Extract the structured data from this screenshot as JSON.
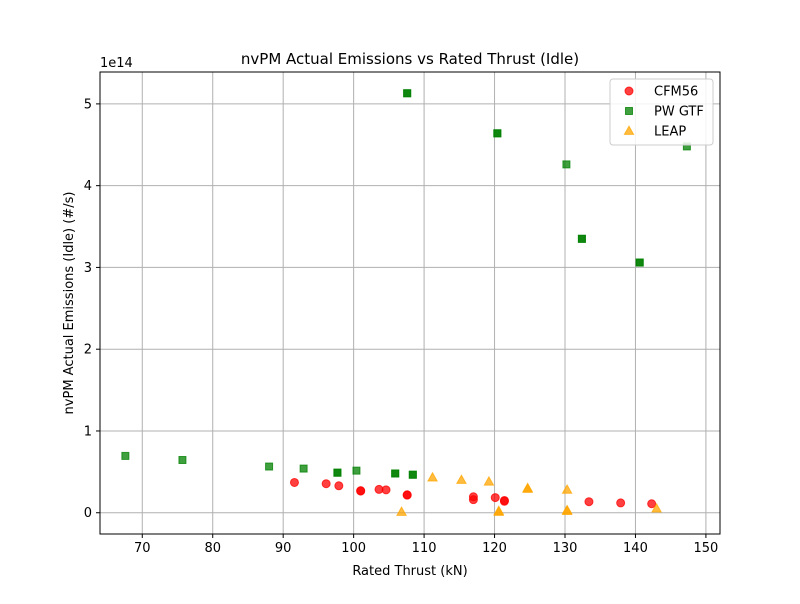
{
  "chart_data": {
    "type": "scatter",
    "title": "nvPM Actual Emissions vs Rated Thrust (Idle)",
    "xlabel": "Rated Thrust (kN)",
    "ylabel": "nvPM Actual Emissions (Idle) (#/s)",
    "y_offset_text": "1e14",
    "xlim": [
      64,
      152
    ],
    "ylim": [
      -0.26,
      5.39
    ],
    "y_multiplier": 100000000000000.0,
    "x_ticks": [
      70,
      80,
      90,
      100,
      110,
      120,
      130,
      140,
      150
    ],
    "y_ticks": [
      0,
      1,
      2,
      3,
      4,
      5
    ],
    "grid": true,
    "legend_position": "top-right",
    "series": [
      {
        "name": "CFM56",
        "marker": "circle",
        "color": "#ff0000",
        "points": [
          [
            91.6,
            0.37
          ],
          [
            96.1,
            0.355
          ],
          [
            97.9,
            0.33
          ],
          [
            101.0,
            0.27
          ],
          [
            101.0,
            0.265
          ],
          [
            103.6,
            0.285
          ],
          [
            104.6,
            0.28
          ],
          [
            107.6,
            0.215
          ],
          [
            107.6,
            0.22
          ],
          [
            117.0,
            0.16
          ],
          [
            117.0,
            0.195
          ],
          [
            120.1,
            0.185
          ],
          [
            121.4,
            0.14
          ],
          [
            121.4,
            0.15
          ],
          [
            133.4,
            0.135
          ],
          [
            137.9,
            0.12
          ],
          [
            142.3,
            0.11
          ]
        ]
      },
      {
        "name": "PW GTF",
        "marker": "square",
        "color": "#008000",
        "points": [
          [
            67.6,
            0.695
          ],
          [
            75.7,
            0.645
          ],
          [
            88.0,
            0.565
          ],
          [
            92.9,
            0.54
          ],
          [
            97.7,
            0.49
          ],
          [
            97.7,
            0.49
          ],
          [
            100.4,
            0.515
          ],
          [
            105.9,
            0.48
          ],
          [
            105.9,
            0.48
          ],
          [
            108.4,
            0.465
          ],
          [
            108.4,
            0.465
          ],
          [
            107.6,
            5.13
          ],
          [
            107.6,
            5.13
          ],
          [
            120.4,
            4.64
          ],
          [
            120.4,
            4.64
          ],
          [
            130.2,
            4.26
          ],
          [
            132.4,
            3.35
          ],
          [
            132.4,
            3.35
          ],
          [
            140.6,
            3.06
          ],
          [
            140.6,
            3.06
          ],
          [
            147.3,
            4.48
          ]
        ]
      },
      {
        "name": "LEAP",
        "marker": "triangle",
        "color": "#ffa500",
        "points": [
          [
            106.8,
            0.01
          ],
          [
            111.2,
            0.43
          ],
          [
            115.3,
            0.4
          ],
          [
            119.2,
            0.38
          ],
          [
            120.6,
            0.02
          ],
          [
            120.6,
            0.01
          ],
          [
            124.7,
            0.29
          ],
          [
            124.7,
            0.3
          ],
          [
            130.3,
            0.28
          ],
          [
            130.3,
            0.03
          ],
          [
            130.3,
            0.02
          ],
          [
            143.0,
            0.05
          ]
        ]
      }
    ]
  }
}
